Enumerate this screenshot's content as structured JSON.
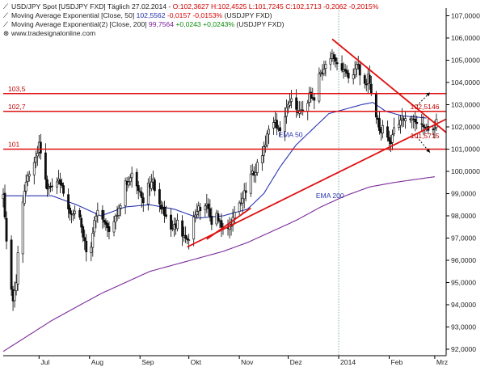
{
  "legend": {
    "row1": {
      "symbol": "USD/JPY Spot [USDJPY FXD]  Täglich 27.02.2014 - ",
      "values": "O:102,3627 H:102,4525 L:101,7245 C:102,1713 -0,2062 -0,2015%"
    },
    "row2": {
      "name": "Moving Average Exponential [Close, 50] ",
      "value": "102,5562",
      "change": " -0,0157 -0,0153%",
      "suffix": " (USDJPY FXD)"
    },
    "row3": {
      "name": "Moving Average Exponential(2) [Close, 200] ",
      "value": "99,7564",
      "change": " +0,0243 +0,0243%",
      "suffix": " (USDJPY FXD)"
    },
    "row4": {
      "icon": "globe-icon",
      "source": "www.tradesignalonline.com"
    }
  },
  "colors": {
    "background": "#ffffff",
    "candle_up": "#ffffff",
    "candle_down": "#111111",
    "candle_outline": "#000000",
    "ema50": "#2a36b0",
    "ema200": "#7a2a9a",
    "support_resistance": "#e01010",
    "annotation_text": "#c00000",
    "grid_vertical": "#8fb0a8",
    "axis": "#000000"
  },
  "chart_data": {
    "type": "candlestick",
    "title": "USD/JPY Spot [USDJPY FXD] Täglich",
    "ylim": [
      91.8,
      107.6
    ],
    "y_ticks": [
      "92,0000",
      "93,0000",
      "94,0000",
      "95,0000",
      "96,0000",
      "97,0000",
      "98,0000",
      "99,0000",
      "100,0000",
      "101,0000",
      "102,0000",
      "103,0000",
      "104,0000",
      "105,0000",
      "106,0000",
      "107,0000"
    ],
    "x_labels": [
      "Jul",
      "Aug",
      "Sep",
      "Okt",
      "Nov",
      "Dez",
      "2014",
      "Feb",
      "Mrz"
    ],
    "x_label_days": [
      52,
      83,
      114,
      144,
      175,
      205,
      236,
      267,
      295
    ],
    "month_grid_days": [
      236
    ],
    "date_range_days": [
      30,
      302
    ],
    "horizontal_levels": [
      {
        "label": "103,5",
        "value": 103.5
      },
      {
        "label": "102,7",
        "value": 102.7
      },
      {
        "label": "101",
        "value": 101.0
      }
    ],
    "trendlines": [
      {
        "name": "support",
        "from": {
          "day": 143,
          "value": 96.6
        },
        "to": {
          "day": 302,
          "value": 102.35
        }
      },
      {
        "name": "resistance",
        "from": {
          "day": 232,
          "value": 105.95
        },
        "to": {
          "day": 302,
          "value": 101.75
        }
      },
      {
        "name": "lower-support",
        "from": {
          "day": 155,
          "value": 96.95
        },
        "to": {
          "day": 182,
          "value": 98.35
        }
      }
    ],
    "breakout_arrows": [
      {
        "from": {
          "day": 284,
          "value": 102.95
        },
        "to": {
          "day": 292,
          "value": 103.55
        }
      },
      {
        "from": {
          "day": 284,
          "value": 101.55
        },
        "to": {
          "day": 292,
          "value": 100.85
        }
      }
    ],
    "annotations": [
      {
        "text": "102,5146",
        "day": 280,
        "value": 102.8
      },
      {
        "text": "101,5715",
        "day": 280,
        "value": 101.5
      },
      {
        "text": "EMA 50",
        "day": 199,
        "value": 101.55
      },
      {
        "text": "EMA 200",
        "day": 222,
        "value": 98.8
      }
    ],
    "price_keyframes": [
      [
        30,
        98.8
      ],
      [
        33,
        96.0
      ],
      [
        36,
        94.0
      ],
      [
        38,
        95.0
      ],
      [
        40,
        97.5
      ],
      [
        43,
        99.2
      ],
      [
        47,
        100.2
      ],
      [
        50,
        100.7
      ],
      [
        52,
        101.2
      ],
      [
        55,
        100.0
      ],
      [
        57,
        99.3
      ],
      [
        61,
        99.5
      ],
      [
        64,
        99.8
      ],
      [
        67,
        99.1
      ],
      [
        71,
        98.1
      ],
      [
        75,
        98.4
      ],
      [
        78,
        97.6
      ],
      [
        81,
        96.4
      ],
      [
        83,
        96.2
      ],
      [
        86,
        97.8
      ],
      [
        89,
        98.5
      ],
      [
        92,
        97.7
      ],
      [
        95,
        97.2
      ],
      [
        98,
        97.9
      ],
      [
        101,
        98.2
      ],
      [
        104,
        99.4
      ],
      [
        107,
        99.5
      ],
      [
        110,
        99.9
      ],
      [
        113,
        99.3
      ],
      [
        116,
        98.6
      ],
      [
        119,
        99.3
      ],
      [
        122,
        99.5
      ],
      [
        125,
        98.8
      ],
      [
        128,
        98.2
      ],
      [
        131,
        97.9
      ],
      [
        134,
        97.4
      ],
      [
        137,
        97.7
      ],
      [
        140,
        97.1
      ],
      [
        143,
        96.8
      ],
      [
        146,
        97.6
      ],
      [
        149,
        98.2
      ],
      [
        152,
        98.5
      ],
      [
        155,
        98.4
      ],
      [
        158,
        97.7
      ],
      [
        161,
        98.1
      ],
      [
        164,
        97.6
      ],
      [
        167,
        97.3
      ],
      [
        170,
        97.7
      ],
      [
        173,
        98.2
      ],
      [
        176,
        98.7
      ],
      [
        179,
        99.1
      ],
      [
        182,
        99.8
      ],
      [
        185,
        100.1
      ],
      [
        188,
        100.6
      ],
      [
        191,
        101.3
      ],
      [
        194,
        102.4
      ],
      [
        197,
        102.2
      ],
      [
        200,
        101.8
      ],
      [
        203,
        102.5
      ],
      [
        206,
        103.2
      ],
      [
        209,
        103.0
      ],
      [
        212,
        102.6
      ],
      [
        215,
        102.8
      ],
      [
        218,
        103.4
      ],
      [
        221,
        103.2
      ],
      [
        224,
        104.4
      ],
      [
        227,
        104.6
      ],
      [
        230,
        104.9
      ],
      [
        232,
        105.2
      ],
      [
        234,
        105.0
      ],
      [
        237,
        104.4
      ],
      [
        239,
        104.6
      ],
      [
        242,
        104.2
      ],
      [
        245,
        104.4
      ],
      [
        248,
        104.8
      ],
      [
        250,
        103.8
      ],
      [
        252,
        103.9
      ],
      [
        254,
        104.2
      ],
      [
        256,
        103.4
      ],
      [
        258,
        102.7
      ],
      [
        260,
        102.3
      ],
      [
        262,
        101.7
      ],
      [
        264,
        102.1
      ],
      [
        266,
        101.7
      ],
      [
        268,
        101.2
      ],
      [
        270,
        102.0
      ],
      [
        272,
        102.1
      ],
      [
        275,
        102.4
      ],
      [
        278,
        102.2
      ],
      [
        281,
        102.5
      ],
      [
        284,
        102.2
      ],
      [
        287,
        102.2
      ],
      [
        290,
        101.9
      ],
      [
        293,
        101.7
      ],
      [
        296,
        102.17
      ]
    ],
    "ema50_keyframes": [
      [
        30,
        98.9
      ],
      [
        45,
        98.9
      ],
      [
        60,
        98.9
      ],
      [
        75,
        98.5
      ],
      [
        90,
        98.0
      ],
      [
        105,
        98.4
      ],
      [
        120,
        98.5
      ],
      [
        135,
        98.3
      ],
      [
        150,
        97.9
      ],
      [
        165,
        98.0
      ],
      [
        180,
        98.3
      ],
      [
        190,
        99.0
      ],
      [
        200,
        100.2
      ],
      [
        210,
        101.2
      ],
      [
        220,
        101.9
      ],
      [
        230,
        102.6
      ],
      [
        240,
        102.8
      ],
      [
        250,
        103.0
      ],
      [
        257,
        103.1
      ],
      [
        265,
        102.7
      ],
      [
        275,
        102.5
      ],
      [
        290,
        102.4
      ]
    ],
    "ema200_keyframes": [
      [
        30,
        91.9
      ],
      [
        45,
        92.6
      ],
      [
        60,
        93.3
      ],
      [
        75,
        93.9
      ],
      [
        90,
        94.5
      ],
      [
        105,
        95.0
      ],
      [
        120,
        95.5
      ],
      [
        135,
        95.8
      ],
      [
        150,
        96.1
      ],
      [
        165,
        96.4
      ],
      [
        180,
        96.8
      ],
      [
        195,
        97.3
      ],
      [
        210,
        97.8
      ],
      [
        225,
        98.4
      ],
      [
        240,
        98.9
      ],
      [
        255,
        99.3
      ],
      [
        270,
        99.5
      ],
      [
        295,
        99.76
      ]
    ]
  }
}
